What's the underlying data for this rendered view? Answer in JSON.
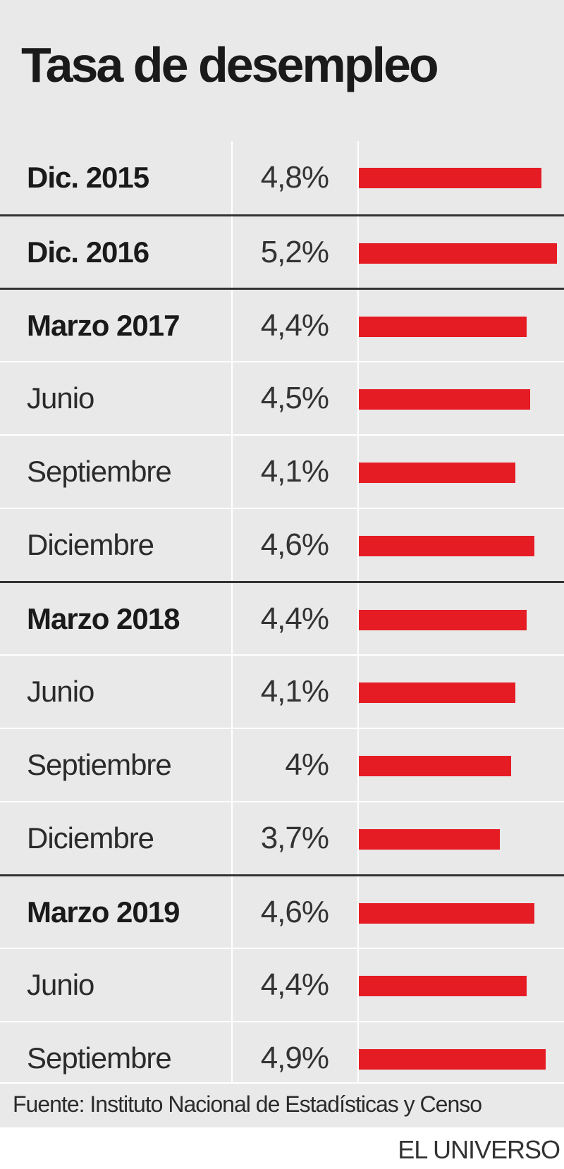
{
  "title": "Tasa de desempleo",
  "source": "Fuente: Instituto Nacional de Estadísticas y Censo",
  "brand": "EL UNIVERSO",
  "colors": {
    "bar": "#e61c24",
    "background": "#e9e9e9",
    "divider": "#333333"
  },
  "chart_data": {
    "type": "bar",
    "orientation": "horizontal",
    "title": "Tasa de desempleo",
    "categories": [
      "Dic. 2015",
      "Dic. 2016",
      "Marzo 2017",
      "Junio",
      "Septiembre",
      "Diciembre",
      "Marzo 2018",
      "Junio",
      "Septiembre",
      "Diciembre",
      "Marzo 2019",
      "Junio",
      "Septiembre"
    ],
    "values": [
      4.8,
      5.2,
      4.4,
      4.5,
      4.1,
      4.6,
      4.4,
      4.1,
      4.0,
      3.7,
      4.6,
      4.4,
      4.9
    ],
    "labels": [
      "4,8%",
      "5,2%",
      "4,4%",
      "4,5%",
      "4,1%",
      "4,6%",
      "4,4%",
      "4,1%",
      "4%",
      "3,7%",
      "4,6%",
      "4,4%",
      "4,9%"
    ],
    "bold": [
      true,
      true,
      true,
      false,
      false,
      false,
      true,
      false,
      false,
      false,
      true,
      false,
      false
    ],
    "xlim": [
      0,
      5.2
    ],
    "grid": false,
    "legend": "none"
  }
}
